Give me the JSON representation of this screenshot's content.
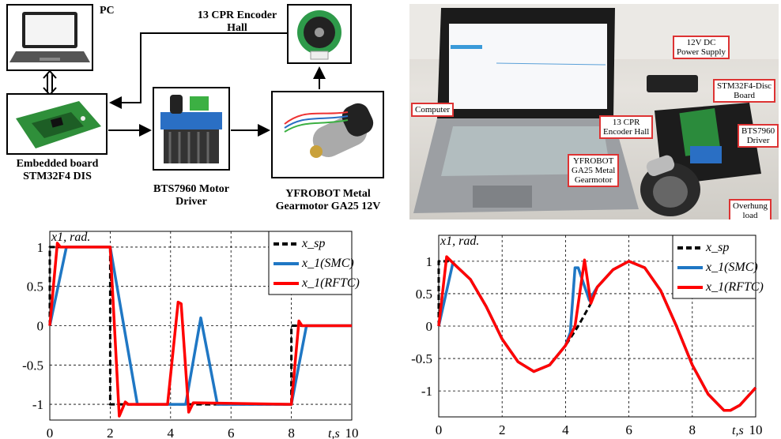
{
  "diagram": {
    "pc_label": "PC",
    "board_label_1": "Embedded board",
    "board_label_2": "STM32F4 DIS",
    "driver_label_1": "BTS7960 Motor",
    "driver_label_2": "Driver",
    "motor_label_1": "YFROBOT Metal",
    "motor_label_2": "Gearmotor GA25 12V",
    "encoder_label_1": "13 CPR Encoder",
    "encoder_label_2": "Hall"
  },
  "photo": {
    "labels": {
      "power_1": "12V DC",
      "power_2": "Power Supply",
      "board_1": "STM32F4-Disc",
      "board_2": "Board",
      "computer": "Computer",
      "encoder_1": "13 CPR",
      "encoder_2": "Encoder Hall",
      "driver_1": "BTS7960",
      "driver_2": "Driver",
      "motor_1": "YFROBOT",
      "motor_2": "GA25 Metal",
      "motor_3": "Gearmotor",
      "load_1": "Overhung",
      "load_2": "load"
    }
  },
  "chart_data": [
    {
      "type": "line",
      "ylabel": "x1, rad.",
      "xlabel": "t,s",
      "xlim": [
        0,
        10
      ],
      "ylim": [
        -1.2,
        1.2
      ],
      "xticks": [
        0,
        2,
        4,
        6,
        8,
        10
      ],
      "yticks": [
        -1,
        -0.5,
        0,
        0.5,
        1
      ],
      "grid": true,
      "legend": "top-right",
      "series": [
        {
          "name": "x_sp",
          "color": "#000000",
          "dash": true,
          "points": [
            [
              0,
              0
            ],
            [
              0,
              1
            ],
            [
              2,
              1
            ],
            [
              2,
              -1
            ],
            [
              8,
              -1
            ],
            [
              8,
              0
            ],
            [
              10,
              0
            ]
          ]
        },
        {
          "name": "x_1(SMC)",
          "color": "#1f77c4",
          "points": [
            [
              0,
              0
            ],
            [
              0.55,
              1
            ],
            [
              2,
              1
            ],
            [
              2.9,
              -1
            ],
            [
              4.5,
              -1
            ],
            [
              5,
              0.1
            ],
            [
              5.55,
              -1
            ],
            [
              8,
              -1
            ],
            [
              8.5,
              0
            ],
            [
              10,
              0
            ]
          ]
        },
        {
          "name": "x_1(RFTC)",
          "color": "#ff0000",
          "points": [
            [
              0,
              0
            ],
            [
              0.25,
              1.05
            ],
            [
              0.35,
              1
            ],
            [
              2,
              1
            ],
            [
              2.3,
              -1.15
            ],
            [
              2.5,
              -0.97
            ],
            [
              2.6,
              -1
            ],
            [
              3.9,
              -1
            ],
            [
              4.25,
              0.3
            ],
            [
              4.35,
              0.28
            ],
            [
              4.6,
              -1.1
            ],
            [
              4.75,
              -0.98
            ],
            [
              8,
              -1
            ],
            [
              8.25,
              0.06
            ],
            [
              8.35,
              0
            ],
            [
              10,
              0
            ]
          ]
        }
      ]
    },
    {
      "type": "line",
      "ylabel": "x1, rad.",
      "xlabel": "t,s",
      "xlim": [
        0,
        10
      ],
      "ylim": [
        -1.4,
        1.4
      ],
      "xticks": [
        0,
        2,
        4,
        6,
        8,
        10
      ],
      "yticks": [
        -1,
        -0.5,
        0,
        0.5,
        1
      ],
      "grid": true,
      "legend": "top-right",
      "series": [
        {
          "name": "x_sp",
          "color": "#000000",
          "dash": true,
          "points": [
            [
              0,
              0
            ],
            [
              0,
              1
            ],
            [
              0.3,
              1
            ],
            [
              0.5,
              0.95
            ],
            [
              1,
              0.72
            ],
            [
              1.5,
              0.3
            ],
            [
              2,
              -0.2
            ],
            [
              2.5,
              -0.55
            ],
            [
              3,
              -0.7
            ],
            [
              3.5,
              -0.6
            ],
            [
              4,
              -0.3
            ],
            [
              4.4,
              0
            ],
            [
              4.8,
              0.35
            ],
            [
              5,
              0.6
            ],
            [
              5.5,
              0.87
            ],
            [
              6,
              1
            ],
            [
              6.5,
              0.9
            ],
            [
              7,
              0.55
            ],
            [
              7.5,
              0
            ],
            [
              8,
              -0.6
            ],
            [
              8.5,
              -1.05
            ],
            [
              9,
              -1.3
            ],
            [
              9.2,
              -1.3
            ],
            [
              9.5,
              -1.22
            ],
            [
              10,
              -0.95
            ]
          ]
        },
        {
          "name": "x_1(SMC)",
          "color": "#1f77c4",
          "points": [
            [
              0,
              0
            ],
            [
              0.45,
              0.98
            ],
            [
              0.5,
              0.95
            ],
            [
              1,
              0.72
            ],
            [
              1.5,
              0.3
            ],
            [
              2,
              -0.2
            ],
            [
              2.5,
              -0.55
            ],
            [
              3,
              -0.7
            ],
            [
              3.5,
              -0.6
            ],
            [
              4,
              -0.3
            ],
            [
              4.15,
              -0.1
            ],
            [
              4.3,
              0.9
            ],
            [
              4.4,
              0.9
            ],
            [
              4.75,
              0.4
            ],
            [
              5,
              0.6
            ],
            [
              5.5,
              0.87
            ],
            [
              6,
              1
            ],
            [
              6.5,
              0.9
            ],
            [
              7,
              0.55
            ],
            [
              7.5,
              0
            ],
            [
              8,
              -0.6
            ],
            [
              8.5,
              -1.05
            ],
            [
              9,
              -1.3
            ],
            [
              9.2,
              -1.3
            ],
            [
              9.5,
              -1.22
            ],
            [
              10,
              -0.95
            ]
          ]
        },
        {
          "name": "x_1(RFTC)",
          "color": "#ff0000",
          "points": [
            [
              0,
              0
            ],
            [
              0.25,
              1.07
            ],
            [
              0.5,
              0.95
            ],
            [
              1,
              0.72
            ],
            [
              1.5,
              0.3
            ],
            [
              2,
              -0.2
            ],
            [
              2.5,
              -0.55
            ],
            [
              3,
              -0.7
            ],
            [
              3.5,
              -0.6
            ],
            [
              4,
              -0.3
            ],
            [
              4.3,
              0
            ],
            [
              4.6,
              1.02
            ],
            [
              4.8,
              0.35
            ],
            [
              5,
              0.6
            ],
            [
              5.5,
              0.87
            ],
            [
              6,
              1
            ],
            [
              6.5,
              0.9
            ],
            [
              7,
              0.55
            ],
            [
              7.5,
              0
            ],
            [
              8,
              -0.6
            ],
            [
              8.5,
              -1.05
            ],
            [
              9,
              -1.3
            ],
            [
              9.2,
              -1.3
            ],
            [
              9.5,
              -1.22
            ],
            [
              10,
              -0.95
            ]
          ]
        }
      ]
    }
  ]
}
